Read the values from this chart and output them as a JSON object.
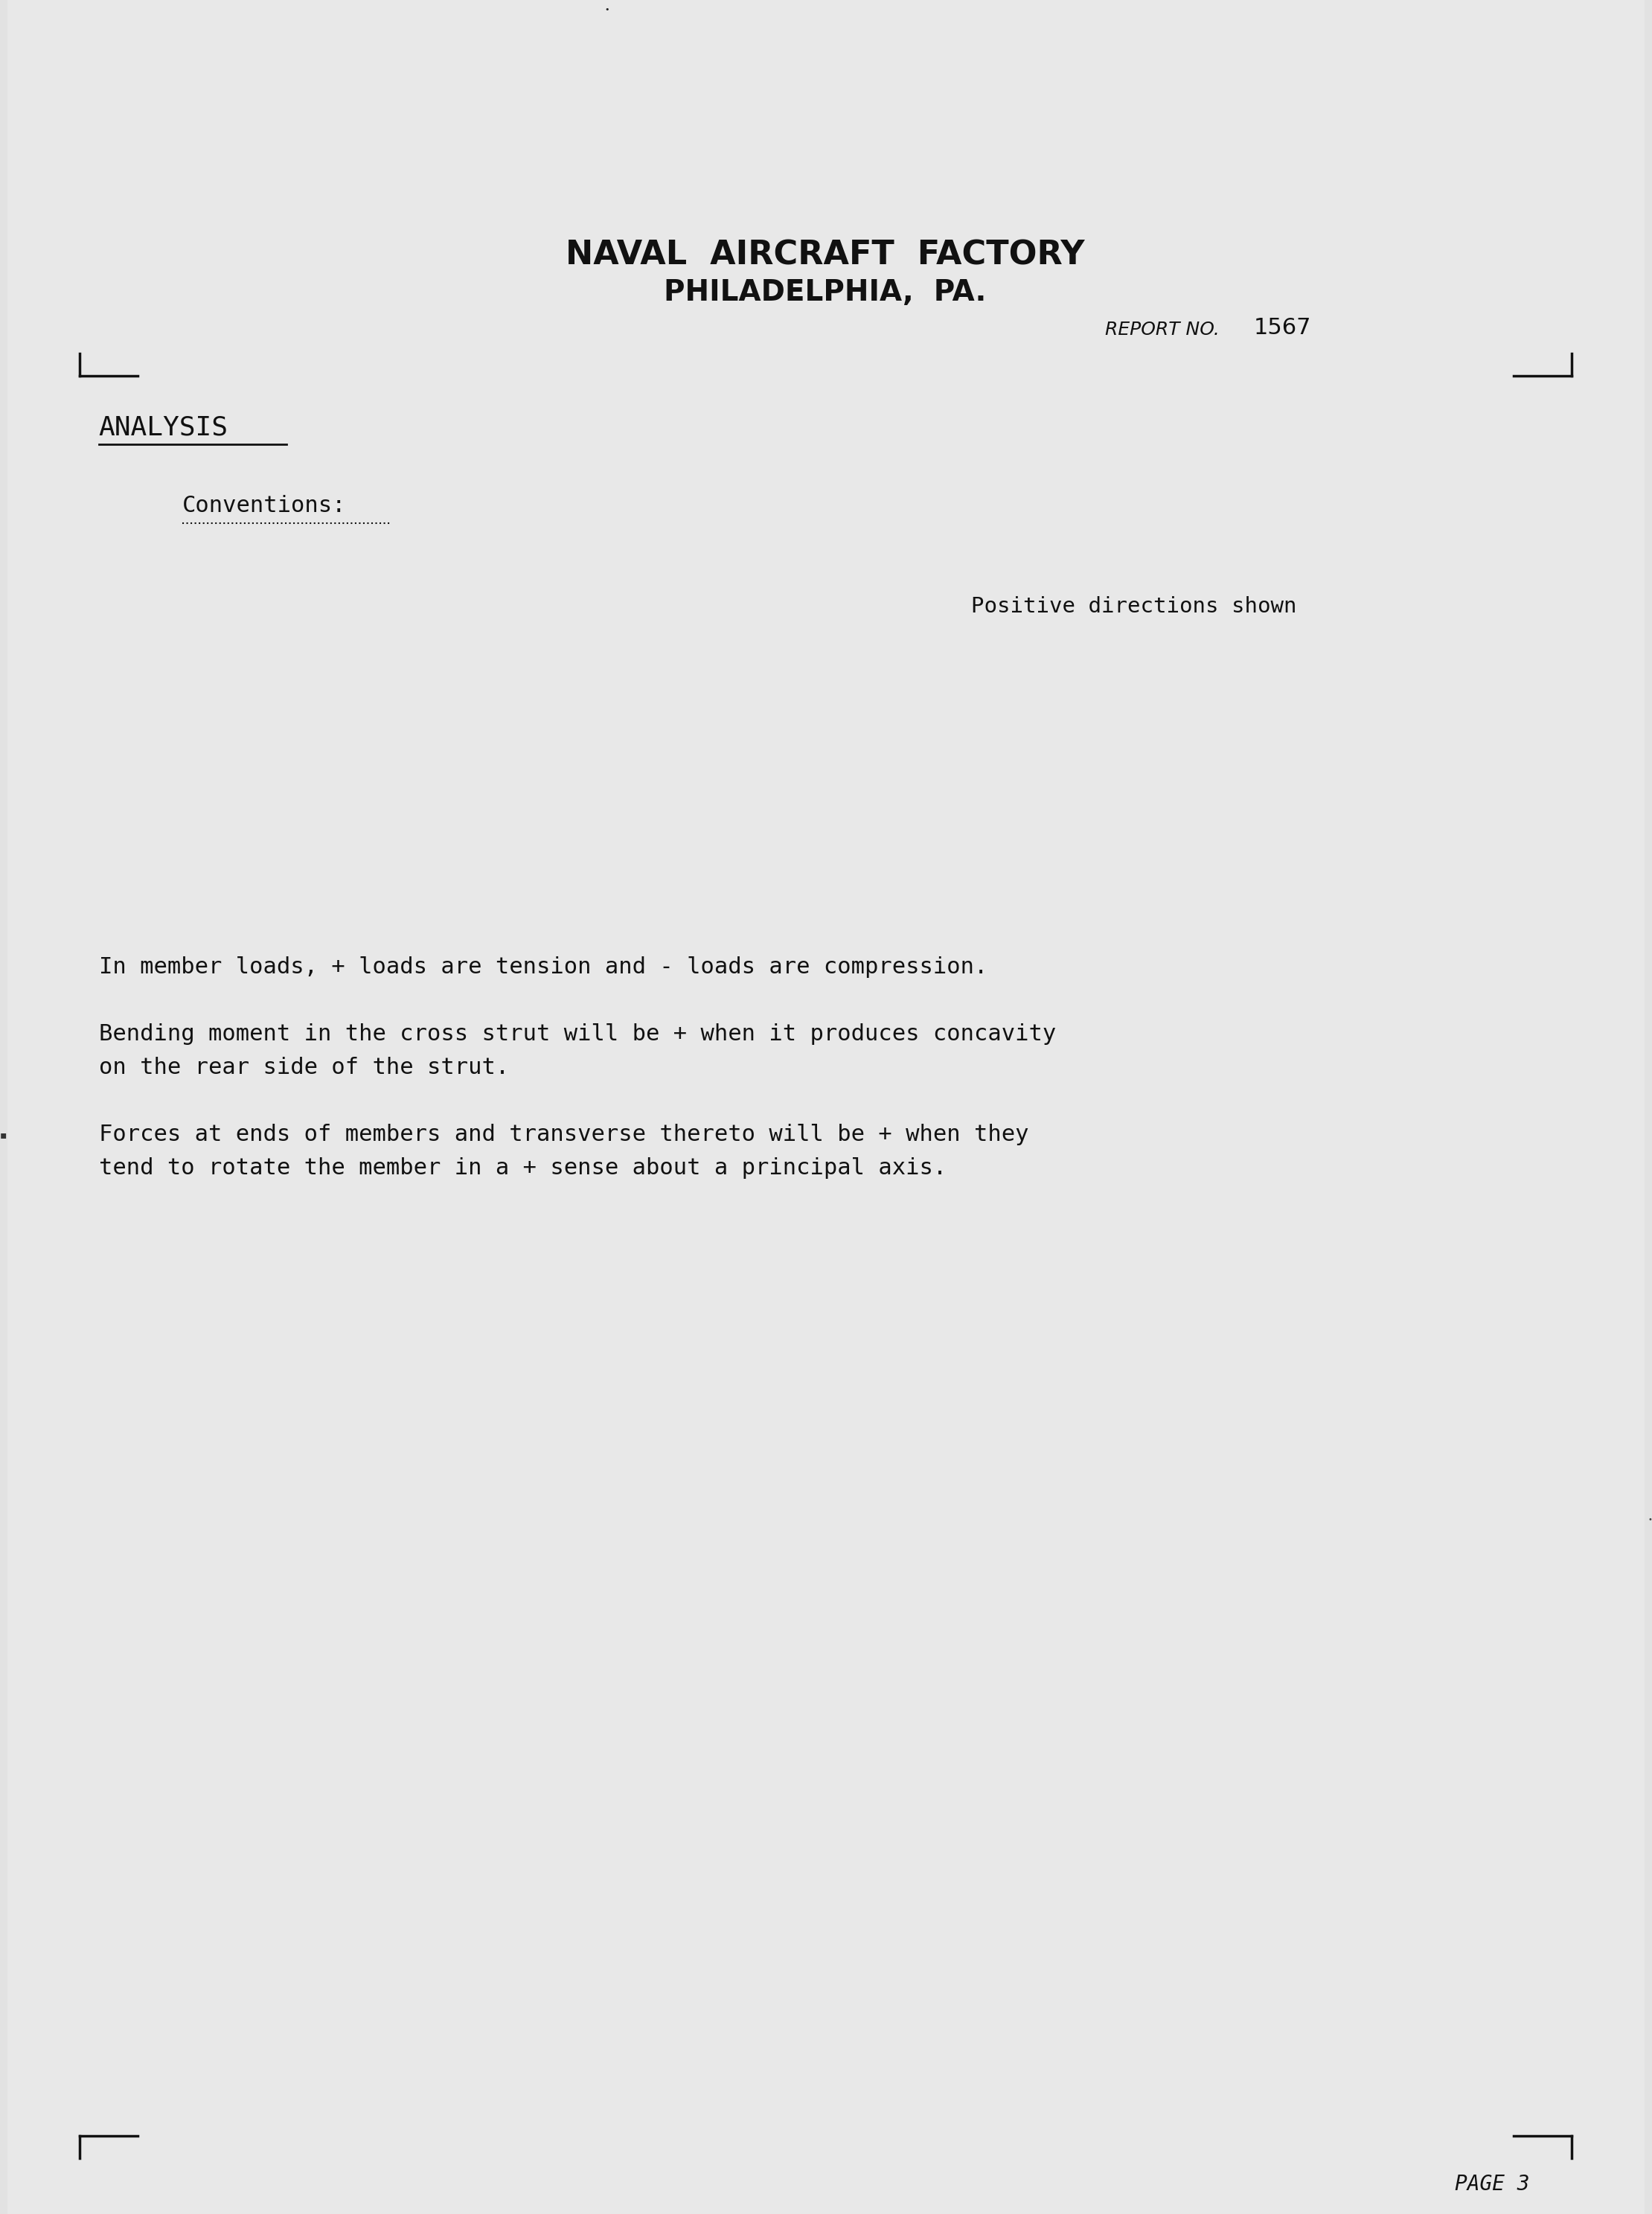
{
  "bg_color": "#e2e2e2",
  "title_line1": "NAVAL  AIRCRAFT  FACTORY",
  "title_line2": "PHILADELPHIA,  PA.",
  "report_no_label": "REPORT NO.",
  "report_no_value": "1567",
  "section_label": "ANALYSIS",
  "conventions_label": "Conventions:",
  "positive_directions": "Positive directions shown",
  "paragraph1": "In member loads, + loads are tension and - loads are compression.",
  "paragraph2_line1": "Bending moment in the cross strut will be + when it produces concavity",
  "paragraph2_line2": "on the rear side of the strut.",
  "paragraph3_line1": "Forces at ends of members and transverse thereto will be + when they",
  "paragraph3_line2": "tend to rotate the member in a + sense about a principal axis.",
  "page_number": "PAGE 3"
}
